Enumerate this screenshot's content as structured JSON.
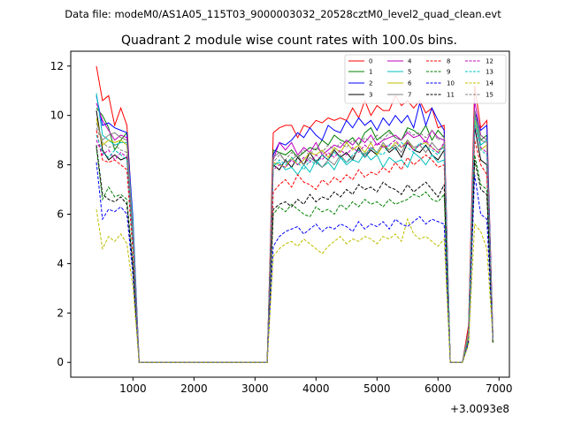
{
  "chart_data": {
    "type": "line",
    "suptitle": "Data file: modeM0/AS1A05_115T03_9000003032_20528cztM0_level2_quad_clean.evt",
    "title": "Quadrant 2 module wise count rates with 100.0s bins.",
    "xlabel": "",
    "ylabel": "",
    "x_offset_label": "+3.0093e8",
    "xlim": [
      -20,
      7170
    ],
    "ylim": [
      -0.6,
      12.6
    ],
    "xticks": [
      1000,
      2000,
      3000,
      4000,
      5000,
      6000,
      7000
    ],
    "xtick_labels": [
      "1000",
      "2000",
      "3000",
      "4000",
      "5000",
      "6000",
      "7000"
    ],
    "yticks": [
      0,
      2,
      4,
      6,
      8,
      10,
      12
    ],
    "ytick_labels": [
      "0",
      "2",
      "4",
      "6",
      "8",
      "10",
      "12"
    ],
    "x": [
      400,
      500,
      600,
      700,
      800,
      900,
      1000,
      1100,
      1200,
      1300,
      1400,
      1500,
      1600,
      1700,
      1800,
      1900,
      2000,
      2100,
      2200,
      2300,
      2400,
      2500,
      2600,
      2700,
      2800,
      2900,
      3000,
      3100,
      3200,
      3300,
      3400,
      3500,
      3600,
      3700,
      3800,
      3900,
      4000,
      4100,
      4200,
      4300,
      4400,
      4500,
      4600,
      4700,
      4800,
      4900,
      5000,
      5100,
      5200,
      5300,
      5400,
      5500,
      5600,
      5700,
      5800,
      5900,
      6000,
      6100,
      6200,
      6300,
      6400,
      6500,
      6600,
      6700,
      6800,
      6900
    ],
    "series": [
      {
        "name": "0",
        "color": "#ff0000",
        "dash": "solid",
        "active": [
          12.0,
          10.6,
          10.8,
          9.6,
          10.3,
          9.6,
          5.5
        ],
        "mid": [
          9.3,
          9.5,
          9.6,
          9.6,
          9.1,
          9.6,
          9.5,
          9.8,
          9.7,
          9.9,
          9.8,
          9.9,
          9.8,
          10.3,
          9.9,
          10.6,
          10.0,
          10.4,
          10.2,
          10.2,
          10.8,
          10.4,
          10.6,
          10.3,
          10.6,
          10.1,
          10.3,
          9.5,
          9.6
        ],
        "end": [
          0.0,
          0.0,
          0.0,
          1.5,
          11.2,
          9.5,
          9.8,
          1.0
        ]
      },
      {
        "name": "1",
        "color": "#008000",
        "dash": "solid",
        "active": [
          10.3,
          10.0,
          9.5,
          8.6,
          9.0,
          9.3,
          5.2
        ],
        "mid": [
          8.6,
          8.5,
          8.4,
          8.6,
          8.3,
          8.5,
          8.7,
          8.6,
          9.0,
          8.8,
          9.2,
          9.0,
          8.9,
          9.1,
          8.8,
          9.3,
          9.5,
          9.0,
          9.2,
          9.4,
          9.1,
          9.0,
          9.5,
          9.4,
          9.2,
          9.6,
          9.0,
          9.4,
          9.1
        ],
        "end": [
          0.0,
          0.0,
          0.0,
          1.3,
          10.2,
          9.0,
          9.2,
          0.9
        ]
      },
      {
        "name": "2",
        "color": "#0000ff",
        "dash": "solid",
        "active": [
          10.8,
          9.6,
          9.7,
          9.5,
          9.4,
          9.3,
          5.8
        ],
        "mid": [
          8.4,
          8.9,
          8.8,
          9.0,
          9.3,
          9.1,
          9.5,
          9.2,
          9.0,
          9.6,
          9.4,
          9.3,
          9.8,
          9.5,
          9.9,
          9.6,
          9.8,
          9.4,
          9.9,
          9.6,
          10.0,
          9.7,
          10.0,
          9.5,
          10.5,
          9.6,
          10.3,
          9.8,
          9.4
        ],
        "end": [
          0.0,
          0.0,
          0.0,
          1.2,
          10.2,
          9.4,
          9.6,
          0.9
        ]
      },
      {
        "name": "3",
        "color": "#000000",
        "dash": "solid",
        "active": [
          10.2,
          8.6,
          8.2,
          8.4,
          8.2,
          8.3,
          4.8
        ],
        "mid": [
          8.0,
          7.8,
          8.2,
          7.9,
          8.3,
          8.0,
          8.5,
          8.1,
          8.4,
          8.2,
          8.6,
          8.3,
          8.5,
          8.2,
          8.7,
          8.3,
          8.6,
          8.4,
          8.8,
          8.5,
          8.7,
          8.3,
          8.9,
          8.6,
          8.5,
          8.8,
          8.4,
          8.2,
          8.6
        ],
        "end": [
          0.0,
          0.0,
          0.0,
          1.1,
          9.5,
          8.2,
          8.0,
          0.8
        ]
      },
      {
        "name": "4",
        "color": "#bf00bf",
        "dash": "solid",
        "active": [
          10.5,
          9.8,
          9.4,
          9.0,
          9.2,
          9.1,
          5.4
        ],
        "mid": [
          8.2,
          8.9,
          8.6,
          8.9,
          8.4,
          8.7,
          8.5,
          8.9,
          8.4,
          8.6,
          8.8,
          8.7,
          9.0,
          8.8,
          9.1,
          8.9,
          9.2,
          8.8,
          9.0,
          9.1,
          9.2,
          9.0,
          9.3,
          9.1,
          9.2,
          8.9,
          9.4,
          9.1,
          9.0
        ],
        "end": [
          0.0,
          0.0,
          0.0,
          1.3,
          10.6,
          9.2,
          9.0,
          0.9
        ]
      },
      {
        "name": "5",
        "color": "#00bfbf",
        "dash": "solid",
        "active": [
          10.9,
          9.2,
          9.0,
          8.8,
          8.9,
          8.9,
          5.6
        ],
        "mid": [
          8.0,
          8.1,
          7.8,
          7.9,
          7.6,
          8.0,
          7.7,
          8.2,
          7.9,
          8.1,
          7.8,
          8.3,
          8.0,
          8.2,
          8.1,
          8.5,
          8.2,
          8.4,
          7.9,
          8.3,
          8.1,
          8.2,
          7.9,
          8.5,
          8.3,
          8.0,
          8.4,
          8.1,
          8.2
        ],
        "end": [
          0.0,
          0.0,
          0.0,
          1.2,
          10.0,
          8.8,
          9.0,
          0.9
        ]
      },
      {
        "name": "6",
        "color": "#bfbf00",
        "dash": "solid",
        "active": [
          9.9,
          8.8,
          9.0,
          8.9,
          9.0,
          8.8,
          5.0
        ],
        "mid": [
          8.1,
          8.0,
          7.9,
          8.3,
          8.0,
          8.2,
          8.5,
          8.4,
          8.6,
          8.3,
          8.7,
          8.5,
          8.9,
          8.6,
          8.8,
          8.5,
          8.9,
          8.4,
          8.8,
          8.6,
          8.9,
          8.7,
          9.0,
          8.6,
          8.8,
          8.9,
          8.7,
          8.5,
          8.8
        ],
        "end": [
          0.0,
          0.0,
          0.0,
          1.2,
          9.8,
          8.6,
          8.8,
          0.9
        ]
      },
      {
        "name": "7",
        "color": "#808080",
        "dash": "solid",
        "active": [
          9.7,
          9.0,
          9.2,
          9.3,
          9.1,
          9.0,
          5.3
        ],
        "mid": [
          8.3,
          8.5,
          8.1,
          8.2,
          8.4,
          8.0,
          8.3,
          8.1,
          7.9,
          8.2,
          8.0,
          8.4,
          8.1,
          8.3,
          8.6,
          8.4,
          8.7,
          8.5,
          8.9,
          8.6,
          8.8,
          8.5,
          9.0,
          8.7,
          8.8,
          8.5,
          8.9,
          8.6,
          8.7
        ],
        "end": [
          0.0,
          0.0,
          0.0,
          1.1,
          10.1,
          9.0,
          8.9,
          0.8
        ]
      },
      {
        "name": "8",
        "color": "#ff0000",
        "dash": "dashed",
        "active": [
          9.4,
          8.2,
          8.1,
          8.2,
          8.0,
          7.8,
          4.4
        ],
        "mid": [
          6.9,
          7.2,
          7.4,
          7.1,
          7.6,
          7.3,
          7.2,
          7.0,
          7.4,
          7.2,
          7.5,
          7.3,
          7.6,
          7.4,
          7.8,
          7.5,
          7.7,
          7.6,
          7.9,
          7.7,
          8.1,
          7.8,
          8.3,
          8.0,
          8.2,
          8.4,
          8.2,
          7.9,
          8.0
        ],
        "end": [
          0.0,
          0.0,
          0.0,
          1.0,
          9.0,
          8.0,
          7.6,
          0.8
        ]
      },
      {
        "name": "9",
        "color": "#008000",
        "dash": "dashed",
        "active": [
          8.7,
          6.6,
          7.1,
          6.7,
          6.8,
          6.6,
          3.9
        ],
        "mid": [
          6.0,
          6.3,
          6.1,
          6.4,
          6.2,
          6.0,
          5.9,
          6.3,
          6.1,
          6.2,
          6.0,
          6.4,
          6.2,
          6.5,
          6.3,
          6.6,
          6.4,
          6.5,
          6.3,
          6.6,
          6.4,
          6.5,
          6.6,
          6.8,
          6.7,
          6.9,
          6.6,
          6.5,
          6.8
        ],
        "end": [
          0.0,
          0.0,
          0.0,
          0.9,
          8.4,
          7.2,
          7.0,
          0.8
        ]
      },
      {
        "name": "10",
        "color": "#0000ff",
        "dash": "dashed",
        "active": [
          8.1,
          5.8,
          6.2,
          6.1,
          6.3,
          6.0,
          3.5
        ],
        "mid": [
          4.7,
          5.1,
          5.3,
          5.4,
          5.5,
          5.2,
          5.4,
          5.6,
          5.3,
          5.5,
          5.4,
          5.6,
          5.5,
          5.3,
          5.7,
          5.4,
          5.6,
          5.5,
          5.7,
          5.4,
          5.8,
          5.6,
          5.5,
          5.7,
          5.9,
          5.6,
          5.8,
          5.7,
          5.6
        ],
        "end": [
          0.0,
          0.0,
          0.0,
          0.8,
          7.6,
          6.0,
          5.8,
          0.9
        ]
      },
      {
        "name": "11",
        "color": "#000000",
        "dash": "dashed",
        "active": [
          8.8,
          6.8,
          6.6,
          6.5,
          6.7,
          6.4,
          3.8
        ],
        "mid": [
          6.2,
          6.4,
          6.5,
          6.3,
          6.6,
          6.4,
          6.8,
          6.5,
          6.7,
          6.6,
          6.9,
          6.7,
          7.0,
          6.8,
          7.2,
          7.0,
          7.1,
          6.9,
          7.3,
          7.1,
          7.0,
          6.8,
          7.2,
          6.9,
          7.1,
          7.3,
          7.0,
          6.7,
          7.2
        ],
        "end": [
          0.0,
          0.0,
          0.0,
          0.9,
          8.2,
          7.0,
          6.8,
          0.8
        ]
      },
      {
        "name": "12",
        "color": "#bf00bf",
        "dash": "dashed",
        "active": [
          9.0,
          8.4,
          8.6,
          8.2,
          8.5,
          8.3,
          4.9
        ],
        "mid": [
          7.8,
          8.0,
          7.9,
          8.2,
          8.0,
          8.3,
          8.1,
          8.4,
          8.2,
          8.5,
          8.3,
          8.6,
          8.4,
          8.7,
          8.5,
          8.8,
          8.6,
          8.9,
          8.7,
          8.8,
          9.0,
          8.7,
          8.9,
          8.6,
          8.8,
          9.0,
          8.7,
          8.5,
          8.9
        ],
        "end": [
          0.0,
          0.0,
          0.0,
          1.0,
          9.6,
          8.7,
          8.5,
          0.9
        ]
      },
      {
        "name": "13",
        "color": "#00bfbf",
        "dash": "dashed",
        "active": [
          9.2,
          8.5,
          8.3,
          8.6,
          8.4,
          8.2,
          4.7
        ],
        "mid": [
          7.9,
          8.2,
          8.0,
          8.3,
          8.1,
          7.8,
          8.2,
          8.0,
          8.4,
          8.2,
          8.5,
          8.3,
          8.1,
          8.4,
          8.6,
          8.3,
          8.7,
          8.5,
          8.4,
          8.8,
          8.6,
          8.9,
          8.7,
          8.5,
          8.9,
          8.7,
          8.6,
          8.4,
          8.8
        ],
        "end": [
          0.0,
          0.0,
          0.0,
          1.0,
          9.7,
          8.6,
          8.4,
          0.9
        ]
      },
      {
        "name": "14",
        "color": "#bfbf00",
        "dash": "dashed",
        "active": [
          6.2,
          4.6,
          5.1,
          4.9,
          5.2,
          4.8,
          3.0
        ],
        "mid": [
          4.3,
          4.6,
          4.8,
          4.9,
          4.7,
          5.0,
          4.8,
          4.6,
          4.4,
          4.7,
          4.9,
          5.1,
          4.8,
          5.0,
          4.9,
          5.1,
          5.0,
          4.8,
          5.1,
          5.0,
          5.2,
          4.9,
          5.8,
          5.2,
          5.0,
          5.1,
          4.9,
          4.7,
          5.0
        ],
        "end": [
          0.0,
          0.0,
          0.0,
          0.7,
          5.6,
          5.3,
          4.6,
          0.9
        ]
      },
      {
        "name": "15",
        "color": "#808080",
        "dash": "dashed",
        "active": [
          9.5,
          8.9,
          8.7,
          8.8,
          8.6,
          8.5,
          5.0
        ],
        "mid": [
          8.1,
          8.4,
          8.2,
          8.5,
          8.3,
          8.6,
          8.4,
          8.7,
          8.5,
          8.8,
          8.6,
          8.9,
          8.7,
          9.0,
          8.8,
          9.1,
          8.9,
          9.2,
          9.0,
          9.3,
          9.1,
          9.0,
          9.4,
          9.2,
          9.3,
          9.1,
          9.4,
          9.0,
          9.2
        ],
        "end": [
          0.0,
          0.0,
          0.0,
          1.1,
          10.2,
          9.2,
          9.0,
          0.9
        ]
      }
    ],
    "legend_location": "upper-right",
    "legend_columns": 4
  }
}
